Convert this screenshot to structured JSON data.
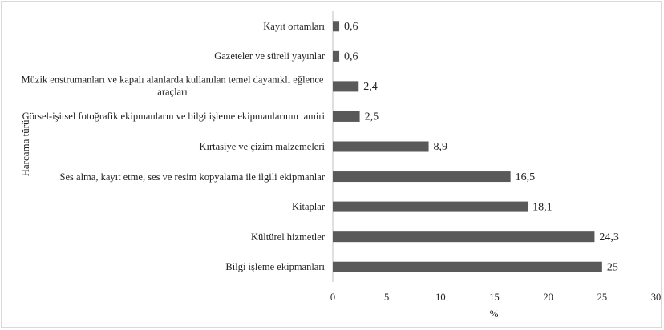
{
  "chart_data": {
    "type": "bar",
    "orientation": "horizontal",
    "categories": [
      "Kayıt ortamları",
      "Gazeteler ve süreli yayınlar",
      "Müzik enstrumanları ve kapalı alanlarda kullanılan temel dayanıklı eğlence araçları",
      "Görsel-işitsel fotoğrafik ekipmanların ve bilgi işleme ekipmanlarının tamiri",
      "Kırtasiye ve çizim malzemeleri",
      "Ses alma, kayıt etme, ses ve resim kopyalama ile ilgili ekipmanlar",
      "Kitaplar",
      "Kültürel hizmetler",
      "Bilgi işleme ekipmanları"
    ],
    "values": [
      0.6,
      0.6,
      2.4,
      2.5,
      8.9,
      16.5,
      18.1,
      24.3,
      25
    ],
    "value_labels": [
      "0,6",
      "0,6",
      "2,4",
      "2,5",
      "8,9",
      "16,5",
      "18,1",
      "24,3",
      "25"
    ],
    "color": "#595959",
    "xlabel": "%",
    "ylabel": "Harcama türü",
    "xlim": [
      0,
      30
    ],
    "xticks": [
      0,
      5,
      10,
      15,
      20,
      25,
      30
    ],
    "grid": false
  }
}
